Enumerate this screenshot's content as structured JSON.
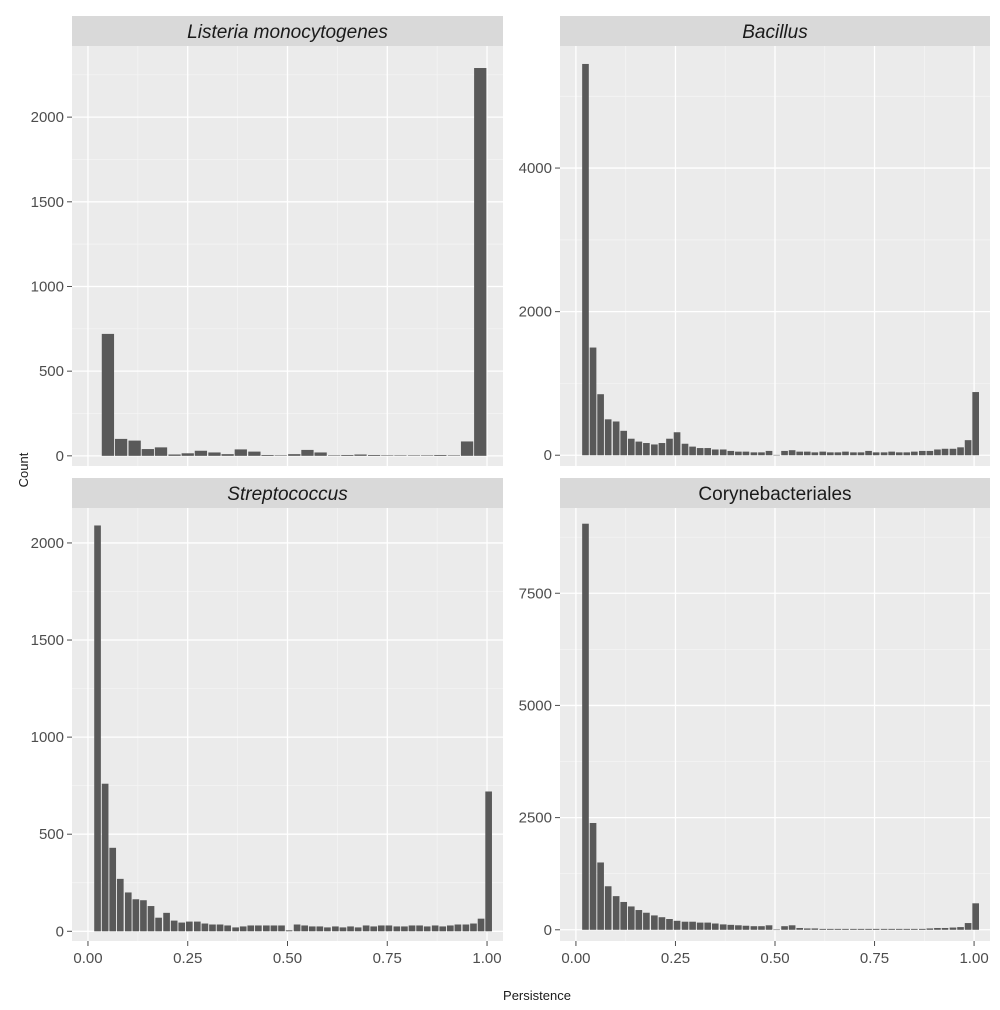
{
  "chart_data": {
    "type": "bar",
    "facet_layout": "2x2",
    "xlabel": "Persistence",
    "ylabel": "Count",
    "x_ticks": [
      "0.00",
      "0.25",
      "0.50",
      "0.75",
      "1.00"
    ],
    "xlim": [
      -0.04,
      1.04
    ],
    "grid": true,
    "panels": [
      {
        "title": "Listeria monocytogenes",
        "title_italic": true,
        "ylim": [
          -60,
          2420
        ],
        "y_ticks": [
          0,
          500,
          1000,
          1500,
          2000
        ],
        "bin_width": 0.0333,
        "x": [
          0.05,
          0.083,
          0.117,
          0.15,
          0.183,
          0.217,
          0.25,
          0.283,
          0.317,
          0.35,
          0.383,
          0.417,
          0.45,
          0.483,
          0.517,
          0.55,
          0.583,
          0.617,
          0.65,
          0.683,
          0.717,
          0.75,
          0.783,
          0.817,
          0.85,
          0.883,
          0.917,
          0.95,
          0.983
        ],
        "values": [
          720,
          100,
          90,
          40,
          50,
          8,
          15,
          30,
          20,
          10,
          38,
          25,
          5,
          3,
          10,
          35,
          20,
          3,
          5,
          8,
          5,
          3,
          3,
          3,
          3,
          5,
          3,
          85,
          2290
        ]
      },
      {
        "title": "Bacillus",
        "title_italic": true,
        "ylim": [
          -150,
          5700
        ],
        "y_ticks": [
          0,
          2000,
          4000
        ],
        "bin_width": 0.0192,
        "x": [
          0.024,
          0.043,
          0.062,
          0.081,
          0.101,
          0.12,
          0.139,
          0.158,
          0.177,
          0.197,
          0.216,
          0.235,
          0.254,
          0.274,
          0.293,
          0.312,
          0.331,
          0.35,
          0.37,
          0.389,
          0.408,
          0.427,
          0.447,
          0.466,
          0.485,
          0.504,
          0.524,
          0.543,
          0.562,
          0.581,
          0.6,
          0.62,
          0.639,
          0.658,
          0.677,
          0.697,
          0.716,
          0.735,
          0.754,
          0.774,
          0.793,
          0.812,
          0.831,
          0.85,
          0.87,
          0.889,
          0.908,
          0.927,
          0.947,
          0.966,
          0.985,
          1.004
        ],
        "values": [
          5450,
          1500,
          850,
          500,
          470,
          340,
          230,
          190,
          170,
          150,
          170,
          230,
          320,
          160,
          120,
          100,
          100,
          80,
          80,
          60,
          50,
          50,
          40,
          40,
          60,
          5,
          60,
          70,
          50,
          50,
          40,
          50,
          40,
          40,
          50,
          40,
          40,
          60,
          40,
          40,
          50,
          40,
          40,
          50,
          60,
          60,
          80,
          90,
          90,
          110,
          210,
          880
        ]
      },
      {
        "title": "Streptococcus",
        "title_italic": true,
        "ylim": [
          -50,
          2180
        ],
        "y_ticks": [
          0,
          500,
          1000,
          1500,
          2000
        ],
        "bin_width": 0.0192,
        "x": [
          0.024,
          0.043,
          0.062,
          0.081,
          0.101,
          0.12,
          0.139,
          0.158,
          0.177,
          0.197,
          0.216,
          0.235,
          0.254,
          0.274,
          0.293,
          0.312,
          0.331,
          0.35,
          0.37,
          0.389,
          0.408,
          0.427,
          0.447,
          0.466,
          0.485,
          0.504,
          0.524,
          0.543,
          0.562,
          0.581,
          0.6,
          0.62,
          0.639,
          0.658,
          0.677,
          0.697,
          0.716,
          0.735,
          0.754,
          0.774,
          0.793,
          0.812,
          0.831,
          0.85,
          0.87,
          0.889,
          0.908,
          0.927,
          0.947,
          0.966,
          0.985,
          1.004
        ],
        "values": [
          2090,
          760,
          430,
          270,
          200,
          165,
          160,
          130,
          70,
          95,
          55,
          45,
          50,
          50,
          40,
          35,
          35,
          30,
          20,
          25,
          30,
          30,
          30,
          30,
          30,
          5,
          35,
          30,
          25,
          25,
          20,
          25,
          20,
          25,
          20,
          30,
          25,
          30,
          30,
          25,
          25,
          30,
          30,
          25,
          30,
          25,
          30,
          35,
          35,
          40,
          65,
          720
        ]
      },
      {
        "title": "Corynebacteriales",
        "title_italic": false,
        "ylim": [
          -250,
          9400
        ],
        "y_ticks": [
          0,
          2500,
          5000,
          7500
        ],
        "bin_width": 0.0192,
        "x": [
          0.024,
          0.043,
          0.062,
          0.081,
          0.101,
          0.12,
          0.139,
          0.158,
          0.177,
          0.197,
          0.216,
          0.235,
          0.254,
          0.274,
          0.293,
          0.312,
          0.331,
          0.35,
          0.37,
          0.389,
          0.408,
          0.427,
          0.447,
          0.466,
          0.485,
          0.504,
          0.524,
          0.543,
          0.562,
          0.581,
          0.6,
          0.62,
          0.639,
          0.658,
          0.677,
          0.697,
          0.716,
          0.735,
          0.754,
          0.774,
          0.793,
          0.812,
          0.831,
          0.85,
          0.87,
          0.889,
          0.908,
          0.927,
          0.947,
          0.966,
          0.985,
          1.004
        ],
        "values": [
          9050,
          2380,
          1500,
          970,
          750,
          620,
          520,
          440,
          380,
          320,
          280,
          240,
          200,
          180,
          180,
          160,
          160,
          140,
          120,
          110,
          100,
          90,
          80,
          80,
          100,
          5,
          80,
          100,
          40,
          30,
          30,
          20,
          20,
          20,
          20,
          20,
          20,
          20,
          20,
          20,
          20,
          20,
          20,
          20,
          20,
          30,
          40,
          40,
          50,
          60,
          150,
          590
        ]
      }
    ]
  }
}
